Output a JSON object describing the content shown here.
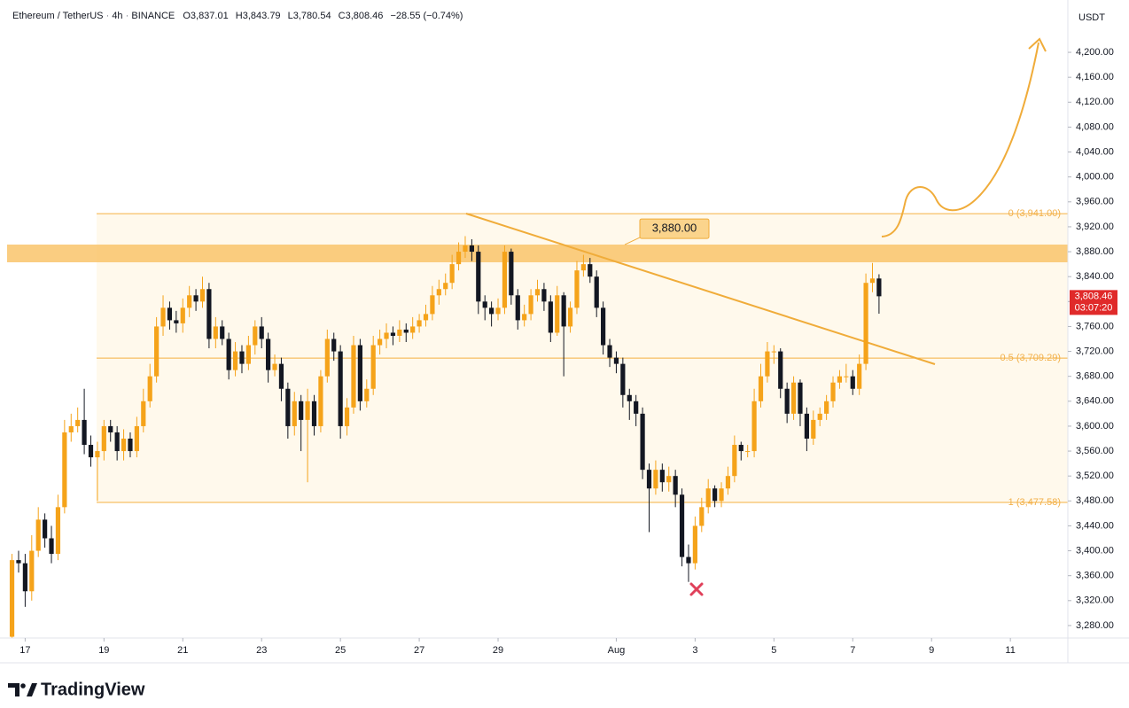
{
  "chart_data": {
    "type": "candlestick",
    "header": {
      "symbol": "Ethereum / TetherUS",
      "interval": "4h",
      "exchange": "BINANCE",
      "o_label": "O",
      "o": "3,837.01",
      "h_label": "H",
      "h": "3,843.79",
      "l_label": "L",
      "l": "3,780.54",
      "c_label": "C",
      "c": "3,808.46",
      "change": "−28.55 (−0.74%)"
    },
    "currency": "USDT",
    "up_color": "#f5a31a",
    "down_color": "#131722",
    "x": [
      376,
      380,
      384,
      388,
      392,
      396,
      400,
      404,
      408,
      412,
      416,
      420,
      424,
      428,
      432,
      436,
      440,
      444,
      448,
      452,
      456,
      460,
      464,
      468,
      472,
      476,
      480,
      484,
      488,
      492,
      496,
      500,
      504,
      508,
      512,
      516,
      520,
      524,
      528,
      532,
      536,
      540,
      544,
      548,
      552,
      556,
      560,
      564,
      568,
      572,
      576,
      580,
      584,
      588,
      592,
      596,
      600,
      604,
      608,
      612,
      616,
      620,
      624,
      628,
      632,
      636,
      640,
      644,
      648,
      652,
      656,
      660,
      664,
      668,
      672,
      676,
      680,
      684,
      688,
      692,
      696,
      700,
      704,
      708,
      712,
      716,
      720,
      724,
      728,
      732,
      736,
      740,
      744,
      748,
      752,
      756,
      760,
      764,
      768,
      772,
      776,
      780,
      784,
      788,
      792,
      796,
      800,
      804,
      808,
      812,
      816,
      820,
      824,
      828,
      832,
      836,
      840,
      844,
      848,
      852,
      856,
      860,
      864,
      868,
      872,
      876,
      880,
      884,
      888,
      892,
      896,
      900,
      904
    ],
    "open": [
      3262,
      3385,
      3380,
      3335,
      3400,
      3450,
      3420,
      3395,
      3470,
      3590,
      3600,
      3610,
      3570,
      3550,
      3560,
      3600,
      3590,
      3560,
      3580,
      3560,
      3600,
      3640,
      3680,
      3760,
      3790,
      3770,
      3765,
      3790,
      3810,
      3800,
      3820,
      3740,
      3760,
      3740,
      3690,
      3720,
      3700,
      3730,
      3760,
      3740,
      3690,
      3700,
      3660,
      3600,
      3640,
      3610,
      3640,
      3600,
      3680,
      3740,
      3720,
      3600,
      3630,
      3730,
      3640,
      3660,
      3730,
      3740,
      3750,
      3745,
      3755,
      3750,
      3760,
      3770,
      3780,
      3810,
      3820,
      3830,
      3860,
      3880,
      3890,
      3880,
      3800,
      3790,
      3780,
      3790,
      3880,
      3810,
      3770,
      3780,
      3810,
      3820,
      3800,
      3750,
      3810,
      3760,
      3790,
      3850,
      3860,
      3840,
      3790,
      3730,
      3710,
      3700,
      3650,
      3640,
      3620,
      3530,
      3500,
      3530,
      3510,
      3520,
      3490,
      3390,
      3380,
      3440,
      3470,
      3500,
      3480,
      3500,
      3520,
      3570,
      3560,
      3560,
      3640,
      3680,
      3720,
      3720,
      3660,
      3620,
      3670,
      3620,
      3580,
      3610,
      3620,
      3640,
      3670,
      3680,
      3680,
      3660,
      3700,
      3830,
      3837.01
    ],
    "high": [
      3395,
      3400,
      3395,
      3425,
      3470,
      3460,
      3440,
      3490,
      3610,
      3620,
      3630,
      3660,
      3585,
      3575,
      3610,
      3610,
      3600,
      3595,
      3590,
      3615,
      3660,
      3700,
      3775,
      3810,
      3800,
      3785,
      3805,
      3825,
      3820,
      3840,
      3830,
      3775,
      3770,
      3750,
      3735,
      3730,
      3745,
      3770,
      3775,
      3750,
      3715,
      3710,
      3670,
      3655,
      3650,
      3660,
      3650,
      3690,
      3755,
      3750,
      3730,
      3645,
      3745,
      3740,
      3675,
      3745,
      3755,
      3765,
      3760,
      3770,
      3765,
      3775,
      3780,
      3795,
      3825,
      3835,
      3845,
      3875,
      3895,
      3905,
      3900,
      3890,
      3810,
      3800,
      3805,
      3890,
      3885,
      3820,
      3795,
      3820,
      3835,
      3830,
      3810,
      3825,
      3815,
      3800,
      3865,
      3875,
      3870,
      3850,
      3800,
      3740,
      3720,
      3710,
      3660,
      3650,
      3630,
      3540,
      3545,
      3540,
      3535,
      3530,
      3500,
      3410,
      3455,
      3485,
      3515,
      3505,
      3510,
      3535,
      3585,
      3575,
      3570,
      3660,
      3700,
      3735,
      3730,
      3725,
      3670,
      3680,
      3675,
      3630,
      3625,
      3630,
      3650,
      3680,
      3690,
      3700,
      3690,
      3715,
      3845,
      3862,
      3843.79
    ],
    "low": [
      3260,
      3365,
      3310,
      3320,
      3390,
      3405,
      3380,
      3385,
      3460,
      3575,
      3590,
      3555,
      3535,
      3480,
      3545,
      3575,
      3545,
      3545,
      3550,
      3550,
      3590,
      3630,
      3670,
      3745,
      3755,
      3750,
      3750,
      3775,
      3785,
      3790,
      3725,
      3725,
      3730,
      3675,
      3680,
      3685,
      3690,
      3715,
      3725,
      3670,
      3680,
      3640,
      3580,
      3585,
      3560,
      3510,
      3585,
      3590,
      3670,
      3705,
      3580,
      3585,
      3620,
      3625,
      3630,
      3650,
      3715,
      3725,
      3730,
      3735,
      3735,
      3740,
      3750,
      3760,
      3770,
      3795,
      3810,
      3820,
      3850,
      3870,
      3865,
      3780,
      3770,
      3760,
      3770,
      3780,
      3795,
      3755,
      3760,
      3770,
      3800,
      3785,
      3735,
      3745,
      3680,
      3750,
      3780,
      3840,
      3830,
      3775,
      3715,
      3695,
      3685,
      3630,
      3610,
      3600,
      3515,
      3430,
      3490,
      3495,
      3495,
      3470,
      3375,
      3350,
      3370,
      3430,
      3460,
      3470,
      3470,
      3490,
      3510,
      3545,
      3550,
      3550,
      3630,
      3670,
      3700,
      3645,
      3605,
      3610,
      3600,
      3560,
      3570,
      3600,
      3610,
      3630,
      3660,
      3670,
      3650,
      3650,
      3690,
      3815,
      3780.54
    ],
    "close": [
      3385,
      3380,
      3335,
      3400,
      3450,
      3420,
      3395,
      3470,
      3590,
      3600,
      3610,
      3570,
      3550,
      3560,
      3600,
      3590,
      3560,
      3580,
      3560,
      3600,
      3640,
      3680,
      3760,
      3790,
      3770,
      3765,
      3790,
      3810,
      3800,
      3820,
      3740,
      3760,
      3740,
      3690,
      3720,
      3700,
      3730,
      3760,
      3740,
      3690,
      3700,
      3660,
      3600,
      3640,
      3610,
      3640,
      3600,
      3680,
      3740,
      3720,
      3600,
      3630,
      3730,
      3640,
      3660,
      3730,
      3740,
      3750,
      3745,
      3755,
      3750,
      3760,
      3770,
      3780,
      3810,
      3820,
      3830,
      3860,
      3880,
      3890,
      3880,
      3800,
      3790,
      3780,
      3790,
      3880,
      3810,
      3770,
      3780,
      3810,
      3820,
      3800,
      3750,
      3810,
      3760,
      3790,
      3850,
      3860,
      3840,
      3790,
      3730,
      3710,
      3700,
      3650,
      3640,
      3620,
      3530,
      3500,
      3530,
      3510,
      3520,
      3490,
      3390,
      3380,
      3440,
      3470,
      3500,
      3480,
      3500,
      3520,
      3570,
      3560,
      3560,
      3640,
      3680,
      3720,
      3720,
      3660,
      3620,
      3670,
      3620,
      3580,
      3610,
      3620,
      3640,
      3670,
      3680,
      3680,
      3660,
      3700,
      3830,
      3837.01,
      3808.46
    ],
    "xlim": [
      373,
      1019
    ],
    "xticks": [
      {
        "value": 384,
        "label": "17"
      },
      {
        "value": 432,
        "label": "19"
      },
      {
        "value": 480,
        "label": "21"
      },
      {
        "value": 528,
        "label": "23"
      },
      {
        "value": 576,
        "label": "25"
      },
      {
        "value": 624,
        "label": "27"
      },
      {
        "value": 672,
        "label": "29"
      },
      {
        "value": 744,
        "label": "Aug"
      },
      {
        "value": 792,
        "label": "3"
      },
      {
        "value": 840,
        "label": "5"
      },
      {
        "value": 888,
        "label": "7"
      },
      {
        "value": 936,
        "label": "9"
      },
      {
        "value": 984,
        "label": "11"
      }
    ],
    "ylim": [
      3260,
      4284
    ],
    "yticks": [
      {
        "value": 3280,
        "label": "3,280.00"
      },
      {
        "value": 3320,
        "label": "3,320.00"
      },
      {
        "value": 3360,
        "label": "3,360.00"
      },
      {
        "value": 3400,
        "label": "3,400.00"
      },
      {
        "value": 3440,
        "label": "3,440.00"
      },
      {
        "value": 3480,
        "label": "3,480.00"
      },
      {
        "value": 3520,
        "label": "3,520.00"
      },
      {
        "value": 3560,
        "label": "3,560.00"
      },
      {
        "value": 3600,
        "label": "3,600.00"
      },
      {
        "value": 3640,
        "label": "3,640.00"
      },
      {
        "value": 3680,
        "label": "3,680.00"
      },
      {
        "value": 3720,
        "label": "3,720.00"
      },
      {
        "value": 3760,
        "label": "3,760.00"
      },
      {
        "value": 3800,
        "label": "3,800.00"
      },
      {
        "value": 3840,
        "label": "3,840.00"
      },
      {
        "value": 3880,
        "label": "3,880.00"
      },
      {
        "value": 3920,
        "label": "3,920.00"
      },
      {
        "value": 3960,
        "label": "3,960.00"
      },
      {
        "value": 4000,
        "label": "4,000.00"
      },
      {
        "value": 4040,
        "label": "4,040.00"
      },
      {
        "value": 4080,
        "label": "4,080.00"
      },
      {
        "value": 4120,
        "label": "4,120.00"
      },
      {
        "value": 4160,
        "label": "4,160.00"
      },
      {
        "value": 4200,
        "label": "4,200.00"
      }
    ],
    "fib_levels": [
      {
        "value": 3941,
        "label": "0 (3,941.00)"
      },
      {
        "value": 3709.29,
        "label": "0.5 (3,709.29)"
      },
      {
        "value": 3477.58,
        "label": "1 (3,477.58)"
      }
    ],
    "callout": {
      "value": 3880,
      "label": "3,880.00"
    },
    "last_price": {
      "value": 3808.46,
      "label": "3,808.46",
      "countdown": "03:07:20"
    },
    "brand": "TradingView"
  }
}
